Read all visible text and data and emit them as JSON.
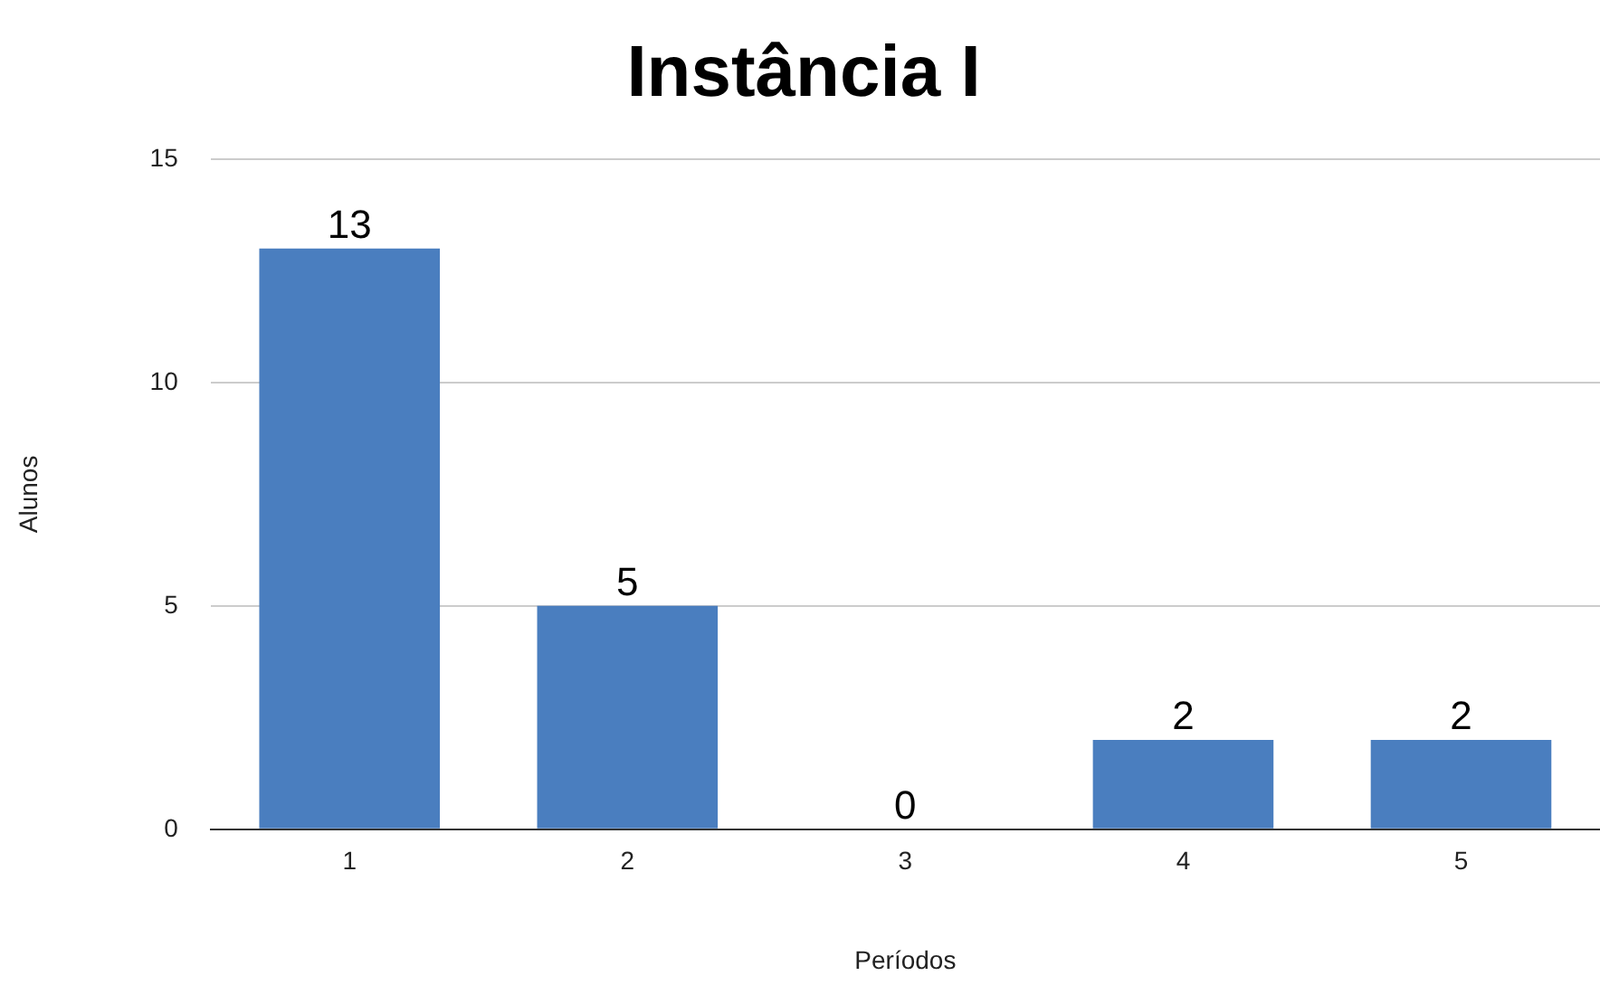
{
  "chart_data": {
    "type": "bar",
    "title": "Instância I",
    "xlabel": "Períodos",
    "ylabel": "Alunos",
    "categories": [
      "1",
      "2",
      "3",
      "4",
      "5"
    ],
    "values": [
      13,
      5,
      0,
      2,
      2
    ],
    "color": "#4a7ebf",
    "ylim": [
      0,
      15
    ],
    "yticks": [
      0,
      5,
      10,
      15
    ],
    "grid": "y",
    "data_labels": true,
    "legend": false
  }
}
